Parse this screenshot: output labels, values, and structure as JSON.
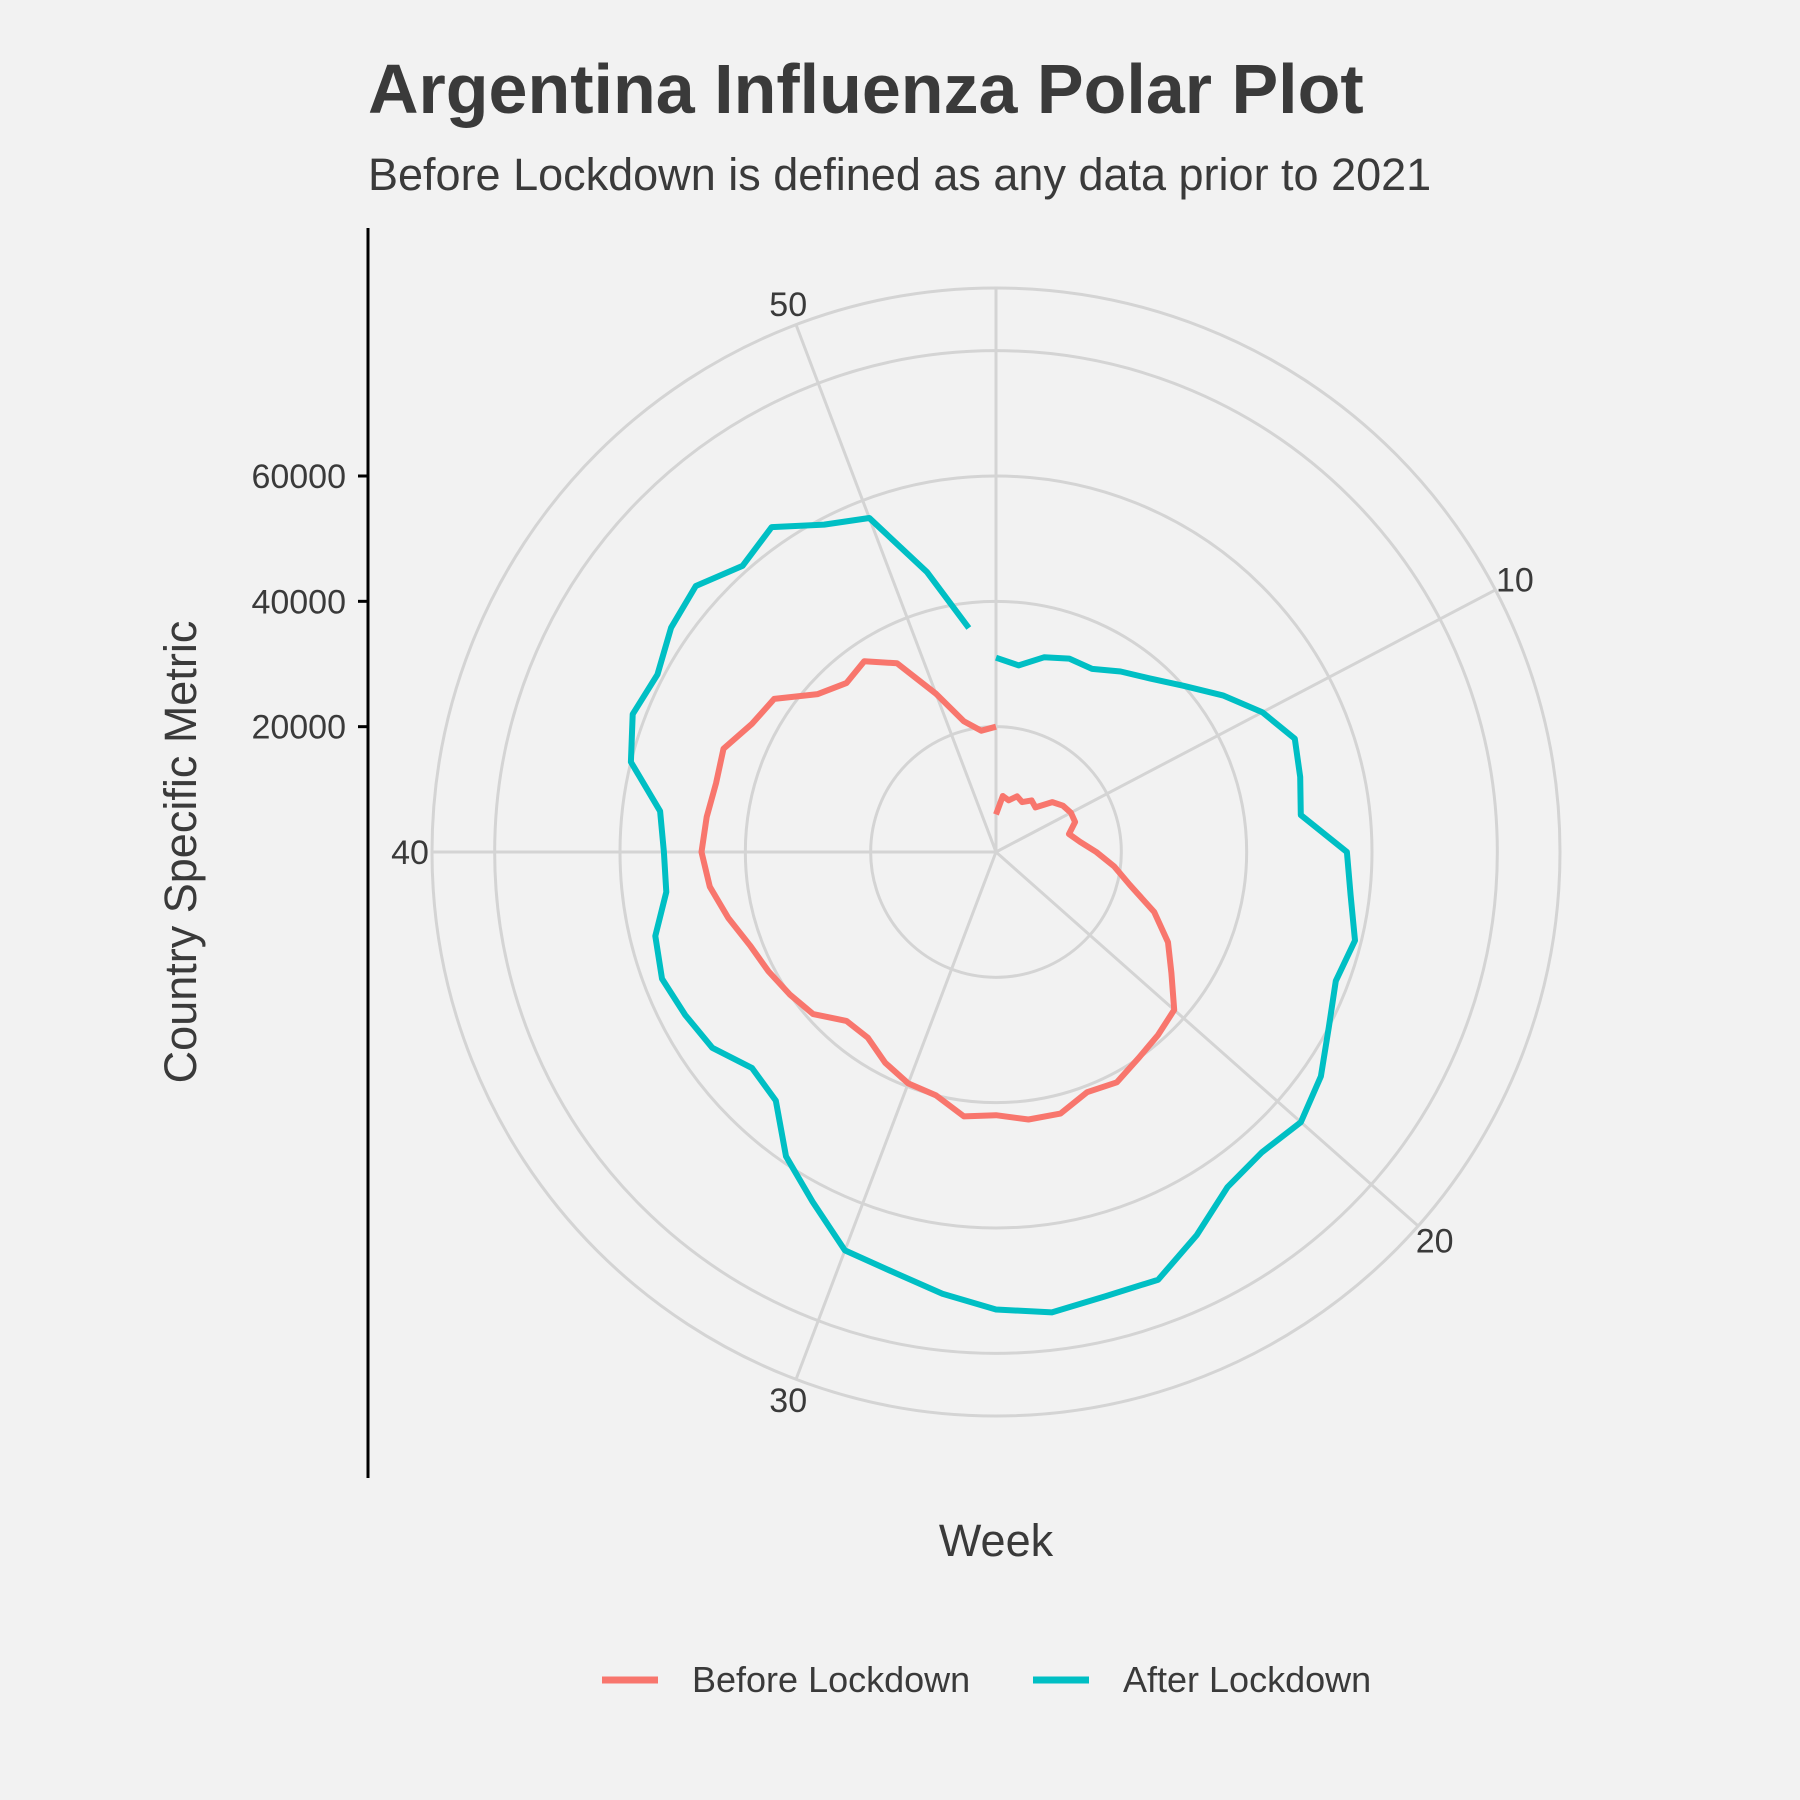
{
  "chart_data": {
    "type": "line",
    "coordinate_system": "polar",
    "title": "Argentina Influenza Polar Plot",
    "subtitle": "Before Lockdown is defined as any data prior to 2021",
    "xlabel": "Week",
    "ylabel": "Country Specific Metric",
    "x_ticks": [
      10,
      20,
      30,
      40,
      50
    ],
    "y_ticks": [
      20000,
      40000,
      60000
    ],
    "xlim": [
      1,
      53
    ],
    "ylim": [
      0,
      90000
    ],
    "grid": true,
    "legend_position": "bottom",
    "series": [
      {
        "name": "Before Lockdown",
        "color": "#F8766D",
        "x": [
          1,
          2,
          3,
          4,
          5,
          6,
          7,
          8,
          9,
          10,
          11,
          12,
          13,
          14,
          15,
          16,
          17,
          18,
          19,
          20,
          21,
          22,
          23,
          24,
          25,
          26,
          27,
          28,
          29,
          30,
          31,
          32,
          33,
          34,
          35,
          36,
          37,
          38,
          39,
          40,
          41,
          42,
          43,
          44,
          45,
          46,
          47,
          48,
          49,
          50,
          51,
          52,
          53
        ],
        "y": [
          6000,
          9000,
          8500,
          9500,
          9000,
          10000,
          9500,
          12000,
          13000,
          13500,
          13500,
          12000,
          13500,
          16000,
          19000,
          22000,
          27000,
          31000,
          34000,
          38000,
          39000,
          40000,
          41500,
          41000,
          43000,
          43000,
          42000,
          42500,
          40000,
          39500,
          38000,
          36000,
          36000,
          39000,
          40000,
          41000,
          42000,
          44000,
          46000,
          47000,
          46500,
          46000,
          46500,
          44000,
          43000,
          38000,
          36000,
          37000,
          34000,
          27000,
          21500,
          19500,
          20000
        ]
      },
      {
        "name": "After Lockdown",
        "color": "#00BFC4",
        "x": [
          1,
          2,
          3,
          4,
          5,
          6,
          7,
          8,
          9,
          10,
          11,
          12,
          13,
          14,
          15,
          16,
          17,
          18,
          19,
          20,
          21,
          22,
          23,
          24,
          25,
          26,
          27,
          28,
          29,
          30,
          31,
          32,
          33,
          34,
          35,
          36,
          37,
          38,
          39,
          40,
          41,
          42,
          43,
          44,
          45,
          46,
          47,
          48,
          49,
          50,
          51,
          52
        ],
        "y": [
          31000,
          30000,
          32000,
          33000,
          33000,
          35000,
          37000,
          40000,
          44000,
          48000,
          51000,
          50000,
          49000,
          56000,
          57000,
          59000,
          58000,
          60000,
          63000,
          65000,
          64000,
          65000,
          69000,
          73000,
          73000,
          74000,
          73000,
          71000,
          69000,
          68000,
          63000,
          59000,
          53000,
          52000,
          55000,
          56000,
          57000,
          56000,
          53000,
          53000,
          54000,
          60000,
          62000,
          61000,
          63000,
          64000,
          61000,
          63000,
          59000,
          57000,
          46000,
          36000
        ]
      }
    ]
  }
}
